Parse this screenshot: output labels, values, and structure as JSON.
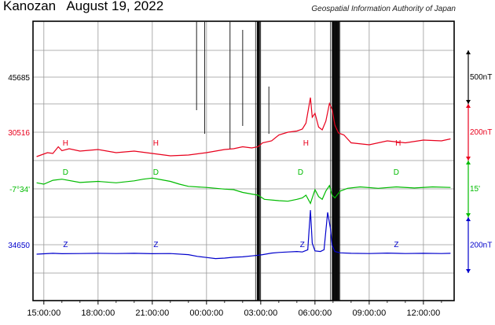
{
  "header": {
    "title": "Kanozan   August 19, 2022",
    "source": "Geospatial Information Authority of Japan"
  },
  "chart_data": {
    "type": "line",
    "xlabel": "",
    "ylabel": "",
    "x_ticks": [
      "15:00:00",
      "18:00:00",
      "21:00:00",
      "00:00:00",
      "03:00:00",
      "06:00:00",
      "09:00:00",
      "12:00:00"
    ],
    "x_range_hours": [
      14.4,
      37.7
    ],
    "left_axis_labels": [
      {
        "text": "45685",
        "color": "#000000"
      },
      {
        "text": "30516",
        "color": "#e8001c"
      },
      {
        "text": "-7°34'",
        "color": "#00bb00"
      },
      {
        "text": "34650",
        "color": "#0000cc"
      }
    ],
    "scale_bars": [
      {
        "label": "500nT",
        "color": "#000000"
      },
      {
        "label": "200nT",
        "color": "#e8001c"
      },
      {
        "label": "15'",
        "color": "#00bb00"
      },
      {
        "label": "200nT",
        "color": "#0000cc"
      }
    ],
    "series": [
      {
        "name": "H",
        "color": "#e8001c",
        "label_positions_h": [
          16.2,
          21.2,
          29.5,
          34.6
        ],
        "x": [
          14.6,
          15.2,
          15.5,
          15.8,
          16.0,
          16.4,
          17.0,
          18.0,
          19.0,
          20.0,
          21.0,
          22.0,
          23.0,
          24.0,
          25.0,
          25.5,
          26.0,
          26.5,
          26.85,
          27.1,
          27.6,
          28.0,
          28.5,
          29.0,
          29.3,
          29.5,
          29.75,
          29.85,
          30.0,
          30.2,
          30.4,
          30.6,
          30.8,
          30.95,
          31.1,
          31.3,
          31.6,
          32.0,
          33.0,
          34.0,
          35.0,
          36.0,
          37.0,
          37.5
        ],
        "y": [
          0,
          10,
          8,
          25,
          15,
          20,
          14,
          18,
          10,
          14,
          8,
          2,
          4,
          10,
          18,
          20,
          25,
          22,
          25,
          35,
          40,
          55,
          62,
          65,
          70,
          85,
          150,
          100,
          110,
          75,
          68,
          90,
          135,
          120,
          80,
          60,
          55,
          35,
          30,
          40,
          35,
          42,
          40,
          45
        ]
      },
      {
        "name": "D",
        "color": "#00bb00",
        "label_positions_h": [
          16.2,
          21.2,
          29.2,
          34.5
        ],
        "x": [
          14.6,
          15.0,
          15.5,
          16.0,
          17.0,
          18.0,
          19.0,
          20.0,
          20.5,
          21.0,
          21.5,
          22.0,
          22.5,
          23.0,
          24.0,
          25.0,
          25.5,
          26.0,
          26.5,
          26.85,
          27.2,
          28.0,
          28.5,
          29.0,
          29.3,
          29.5,
          29.75,
          29.85,
          30.0,
          30.2,
          30.4,
          30.6,
          30.8,
          30.95,
          31.1,
          31.4,
          31.8,
          32.5,
          33.5,
          34.5,
          35.5,
          36.5,
          37.5
        ],
        "y": [
          5,
          0,
          14,
          18,
          6,
          10,
          5,
          12,
          18,
          22,
          16,
          10,
          0,
          -8,
          -12,
          -18,
          -20,
          -30,
          -36,
          -40,
          -55,
          -60,
          -62,
          -55,
          -50,
          -40,
          -70,
          -50,
          -20,
          -45,
          -55,
          -25,
          -5,
          -40,
          -50,
          -25,
          -15,
          -10,
          -15,
          -10,
          -14,
          -10,
          -12
        ]
      },
      {
        "name": "Z",
        "color": "#0000cc",
        "label_positions_h": [
          16.2,
          21.2,
          29.3,
          34.5
        ],
        "x": [
          14.6,
          15.5,
          16.0,
          17.0,
          18.0,
          19.0,
          20.0,
          21.0,
          22.0,
          23.0,
          23.5,
          24.0,
          24.5,
          25.0,
          25.5,
          26.0,
          26.5,
          26.85,
          27.1,
          27.6,
          28.0,
          28.5,
          29.0,
          29.3,
          29.6,
          29.75,
          29.85,
          30.0,
          30.3,
          30.5,
          30.7,
          30.85,
          30.95,
          31.1,
          31.4,
          32.0,
          33.0,
          34.0,
          35.0,
          36.0,
          37.0,
          37.5
        ],
        "y": [
          0,
          4,
          2,
          3,
          4,
          3,
          4,
          2,
          3,
          -2,
          -10,
          -15,
          -20,
          -18,
          -14,
          -12,
          -8,
          -5,
          -2,
          5,
          8,
          10,
          12,
          10,
          20,
          200,
          50,
          15,
          12,
          20,
          190,
          120,
          40,
          12,
          6,
          4,
          3,
          5,
          3,
          4,
          3,
          4
        ]
      }
    ],
    "data_gaps_h": [
      [
        26.8,
        26.95
      ],
      [
        30.95,
        31.35
      ]
    ],
    "spikes_h": [
      23.45,
      23.9,
      25.3,
      26.0,
      27.45
    ]
  }
}
